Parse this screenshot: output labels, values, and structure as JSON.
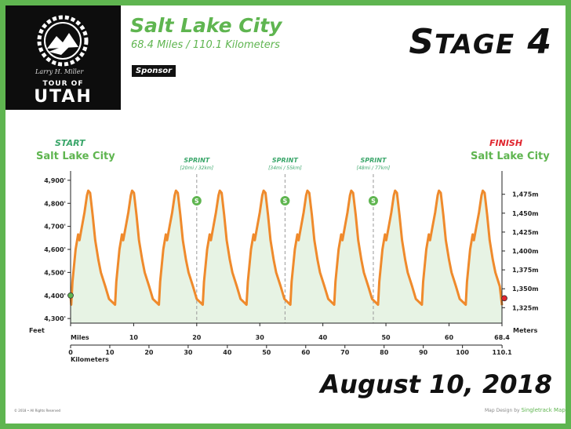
{
  "logo": {
    "signature": "Larry H. Miller",
    "line1": "TOUR OF",
    "line2": "UTAH"
  },
  "route": {
    "city": "Salt Lake City",
    "distance": "68.4 Miles / 110.1 Kilometers",
    "sponsor": "Sponsor"
  },
  "stage": {
    "prefix": "S",
    "rest": "TAGE",
    "number": "4"
  },
  "start": {
    "word": "START",
    "city": "Salt Lake City"
  },
  "finish": {
    "word": "FINISH",
    "city": "Salt Lake City"
  },
  "date": "August 10, 2018",
  "footer": {
    "copyright": "© 2018 • All Rights Reserved",
    "maps_prefix": "Map Design by",
    "maps_brand": "Singletrack Maps"
  },
  "colors": {
    "brand_green": "#5fb550",
    "profile_line": "#ef8a2c",
    "profile_fill": "#e7f3e4",
    "start_marker": "#5fb550",
    "finish_marker": "#e0262f",
    "sprint_marker": "#5fb550"
  },
  "chart_data": {
    "type": "area",
    "xlabel": "Miles",
    "xlabel_secondary": "Kilometers",
    "ylabel": "Feet",
    "ylabel_secondary": "Meters",
    "xlim": [
      0,
      68.4
    ],
    "ylim": [
      4280,
      4920
    ],
    "x_ticks": [
      "0",
      "10",
      "20",
      "30",
      "40",
      "50",
      "60",
      "68.4"
    ],
    "x_tick_values": [
      0,
      10,
      20,
      30,
      40,
      50,
      60,
      68.4
    ],
    "km_ticks": [
      "0",
      "10",
      "20",
      "30",
      "40",
      "50",
      "60",
      "70",
      "80",
      "90",
      "100",
      "110.1"
    ],
    "km_tick_values": [
      0,
      10,
      20,
      30,
      40,
      50,
      60,
      70,
      80,
      90,
      100,
      110.1
    ],
    "y_ticks": [
      "4,300'",
      "4,400'",
      "4,500'",
      "4,600'",
      "4,700'",
      "4,800'",
      "4,900'"
    ],
    "y_tick_values": [
      4300,
      4400,
      4500,
      4600,
      4700,
      4800,
      4900
    ],
    "m_ticks": [
      "1,325m",
      "1,350m",
      "1,375m",
      "1,400m",
      "1,425m",
      "1,450m",
      "1,475m"
    ],
    "m_tick_values": [
      1325,
      1350,
      1375,
      1400,
      1425,
      1450,
      1475
    ],
    "lap_length_miles": 6.95,
    "lap_profile": [
      [
        0,
        4360
      ],
      [
        0.2,
        4460
      ],
      [
        0.7,
        4600
      ],
      [
        1.1,
        4665
      ],
      [
        1.3,
        4640
      ],
      [
        1.7,
        4700
      ],
      [
        2.1,
        4760
      ],
      [
        2.5,
        4835
      ],
      [
        2.7,
        4855
      ],
      [
        3.0,
        4845
      ],
      [
        3.4,
        4750
      ],
      [
        3.8,
        4640
      ],
      [
        4.3,
        4555
      ],
      [
        4.7,
        4500
      ],
      [
        5.4,
        4440
      ],
      [
        6.0,
        4385
      ],
      [
        6.95,
        4360
      ]
    ],
    "lap_offset_miles": 0.1,
    "start_elevation": 4400,
    "finish_elevation": 4358,
    "sprints": [
      {
        "label": "SPRINT",
        "sub": "[20mi / 32km]",
        "mile": 20,
        "marker": "S"
      },
      {
        "label": "SPRINT",
        "sub": "[34mi / 55km]",
        "mile": 34,
        "marker": "S"
      },
      {
        "label": "SPRINT",
        "sub": "[48mi / 77km]",
        "mile": 48,
        "marker": "S"
      }
    ]
  }
}
